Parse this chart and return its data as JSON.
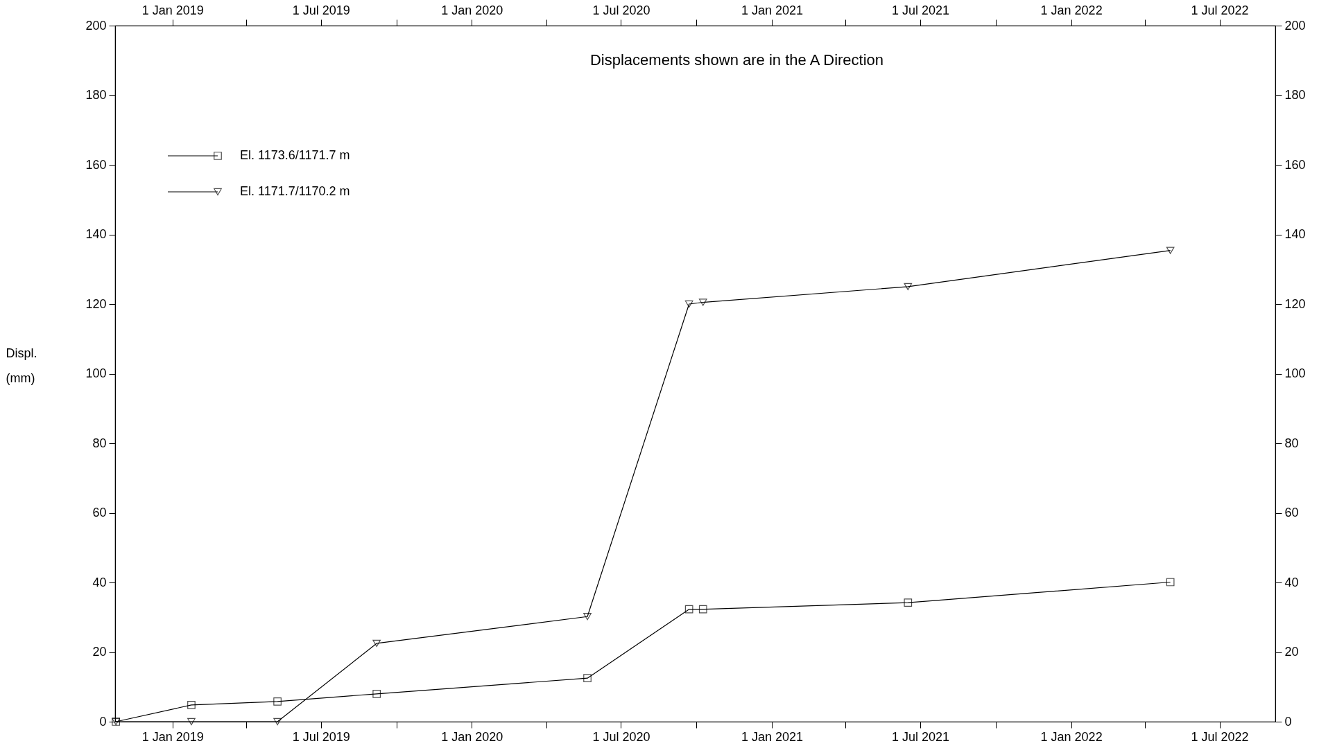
{
  "chart_data": {
    "type": "line",
    "title": "Displacements shown are in the  A Direction",
    "ylabel": "Displ.\n(mm)",
    "x": [
      "2018-10-24",
      "2019-01-24",
      "2019-05-09",
      "2019-09-07",
      "2020-05-21",
      "2020-09-22",
      "2020-10-09",
      "2021-06-16",
      "2022-05-02"
    ],
    "series": [
      {
        "name": "El. 1173.6/1171.7 m",
        "color": "#000000",
        "marker": "square",
        "values": [
          0,
          4.8,
          5.8,
          8.0,
          12.5,
          32.3,
          32.3,
          34.2,
          40.1
        ]
      },
      {
        "name": "El. 1171.7/1170.2 m",
        "color": "#000000",
        "marker": "triangle",
        "values": [
          0,
          0,
          0,
          22.5,
          30.2,
          120.0,
          120.5,
          125.0,
          135.4
        ]
      }
    ],
    "xlim": [
      "2018-10-23",
      "2022-09-07"
    ],
    "xticks": [
      {
        "value": "2019-01-01",
        "label": "1 Jan 2019"
      },
      {
        "value": "2019-04-01",
        "label": null
      },
      {
        "value": "2019-07-01",
        "label": "1 Jul 2019"
      },
      {
        "value": "2019-10-01",
        "label": null
      },
      {
        "value": "2020-01-01",
        "label": "1 Jan 2020"
      },
      {
        "value": "2020-04-01",
        "label": null
      },
      {
        "value": "2020-07-01",
        "label": "1 Jul 2020"
      },
      {
        "value": "2020-10-01",
        "label": null
      },
      {
        "value": "2021-01-01",
        "label": "1 Jan 2021"
      },
      {
        "value": "2021-04-01",
        "label": null
      },
      {
        "value": "2021-07-01",
        "label": "1 Jul 2021"
      },
      {
        "value": "2021-10-01",
        "label": null
      },
      {
        "value": "2022-01-01",
        "label": "1 Jan 2022"
      },
      {
        "value": "2022-04-01",
        "label": null
      },
      {
        "value": "2022-07-01",
        "label": "1 Jul 2022"
      }
    ],
    "x2lim": [
      "2018-10-23",
      "2022-09-07"
    ],
    "x2ticks": [
      {
        "value": "2019-01-01",
        "label": "1 Jan 2019"
      },
      {
        "value": "2019-04-01",
        "label": null
      },
      {
        "value": "2019-07-01",
        "label": "1 Jul 2019"
      },
      {
        "value": "2019-10-01",
        "label": null
      },
      {
        "value": "2020-01-01",
        "label": "1 Jan 2020"
      },
      {
        "value": "2020-04-01",
        "label": null
      },
      {
        "value": "2020-07-01",
        "label": "1 Jul 2020"
      },
      {
        "value": "2020-10-01",
        "label": null
      },
      {
        "value": "2021-01-01",
        "label": "1 Jan 2021"
      },
      {
        "value": "2021-04-01",
        "label": null
      },
      {
        "value": "2021-07-01",
        "label": "1 Jul 2021"
      },
      {
        "value": "2021-10-01",
        "label": null
      },
      {
        "value": "2022-01-01",
        "label": "1 Jan 2022"
      },
      {
        "value": "2022-04-01",
        "label": null
      },
      {
        "value": "2022-07-01",
        "label": "1 Jul 2022"
      }
    ],
    "ylim": [
      0,
      200
    ],
    "yticks": [
      0,
      20,
      40,
      60,
      80,
      100,
      120,
      140,
      160,
      180,
      200
    ],
    "y2lim": [
      0,
      200
    ],
    "y2ticks": [
      0,
      20,
      40,
      60,
      80,
      100,
      120,
      140,
      160,
      180,
      200
    ],
    "grid": false,
    "legend": "top left",
    "line_style": "solid"
  }
}
